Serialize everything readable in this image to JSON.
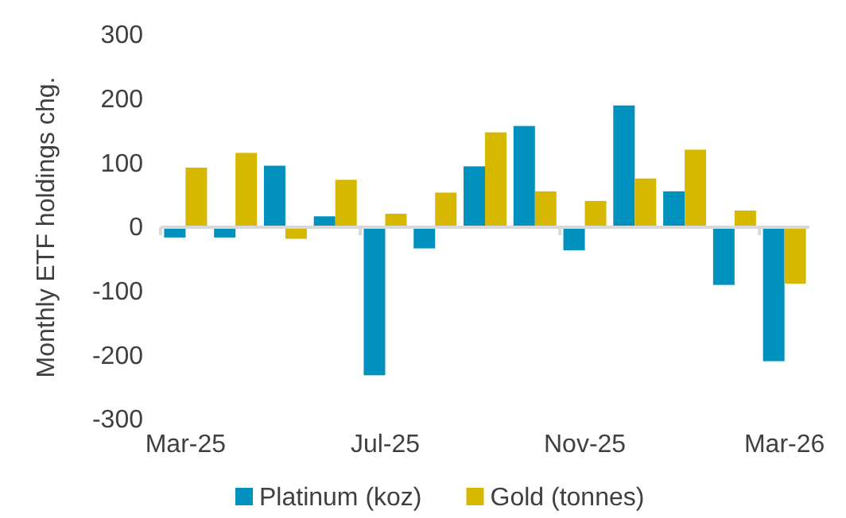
{
  "chart_data": {
    "type": "bar",
    "ylabel": "Monthly ETF holdings chg.",
    "categories": [
      "Mar-25",
      null,
      null,
      null,
      "Jul-25",
      null,
      null,
      null,
      "Nov-25",
      null,
      null,
      null,
      "Mar-26"
    ],
    "series": [
      {
        "name": "Platinum (koz)",
        "color": "#0091be",
        "values": [
          -16,
          -16,
          96,
          17,
          -231,
          -33,
          95,
          158,
          -36,
          190,
          56,
          -90,
          -209
        ]
      },
      {
        "name": "Gold (tonnes)",
        "color": "#d6b800",
        "values": [
          93,
          116,
          -18,
          74,
          21,
          54,
          148,
          56,
          41,
          76,
          121,
          26,
          -88
        ]
      }
    ],
    "ylim": [
      -300,
      300
    ],
    "yticks": [
      -300,
      -200,
      -100,
      0,
      100,
      200,
      300
    ],
    "legend": "bottom"
  }
}
